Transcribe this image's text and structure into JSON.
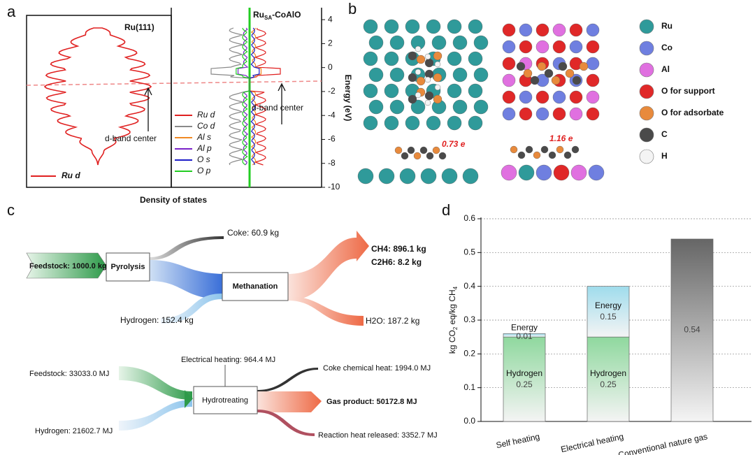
{
  "panel_labels": [
    "a",
    "b",
    "c",
    "d"
  ],
  "panel_a": {
    "left": {
      "title": "Ru(111)",
      "legend": "Ru d",
      "annotation": "d-band center"
    },
    "right": {
      "title": {
        "main": "Ru",
        "sub": "SA",
        "rest": "-CoAlO"
      },
      "annotation": "d-band center",
      "legend": [
        {
          "name": "Ru d",
          "color": "#e02020"
        },
        {
          "name": "Co d",
          "color": "#8a8a8a"
        },
        {
          "name": "Al s",
          "color": "#f08a24"
        },
        {
          "name": "Al p",
          "color": "#7a22c8"
        },
        {
          "name": "O s",
          "color": "#1c1cc8"
        },
        {
          "name": "O p",
          "color": "#22cc22"
        }
      ],
      "ylim": [
        -10,
        5
      ],
      "yticks": [
        4,
        2,
        0,
        -2,
        -4,
        -6,
        -8,
        -10
      ],
      "ylabel": "Energy (eV)"
    },
    "xlabel": "Density of states"
  },
  "panel_b": {
    "charges": [
      "0.73 e",
      "1.16 e"
    ],
    "legend": [
      {
        "name": "Ru",
        "color": "#2f9a9a"
      },
      {
        "name": "Co",
        "color": "#6f7fe0"
      },
      {
        "name": "Al",
        "color": "#e070e0"
      },
      {
        "name": "O for support",
        "color": "#e02828"
      },
      {
        "name": "O for adsorbate",
        "color": "#e88a3c"
      },
      {
        "name": "C",
        "color": "#4a4a4a"
      },
      {
        "name": "H",
        "color": "#f4f4f4"
      }
    ]
  },
  "panel_c": {
    "mass": {
      "feedstock": "Feedstock: 1000.0 kg",
      "pyrolysis": "Pyrolysis",
      "coke": "Coke: 60.9 kg",
      "hydrogen": "Hydrogen: 152.4 kg",
      "methanation": "Methanation",
      "ch4": "CH4: 896.1 kg",
      "c2h6": "C2H6: 8.2 kg",
      "h2o": "H2O: 187.2 kg"
    },
    "energy": {
      "electrical": "Electrical heating: 964.4 MJ",
      "feedstock": "Feedstock: 33033.0 MJ",
      "coke": "Coke chemical heat: 1994.0 MJ",
      "hydrotreating": "Hydrotreating",
      "gas": "Gas product: 50172.8 MJ",
      "hydrogen": "Hydrogen: 21602.7 MJ",
      "reaction": "Reaction heat released: 3352.7 MJ"
    }
  },
  "chart_data": {
    "type": "stacked_bar",
    "ylabel": {
      "a": "kg CO",
      "b": "2",
      "c": " eq/kg CH",
      "d": "4"
    },
    "categories": [
      "Self heating",
      "Electrical heating",
      "Conventional nature gas"
    ],
    "series": [
      {
        "name": "Hydrogen",
        "color": "#8fd89e",
        "values": [
          0.25,
          0.25,
          null
        ]
      },
      {
        "name": "Energy",
        "color": "#9fdcec",
        "values": [
          0.01,
          0.15,
          null
        ]
      },
      {
        "color": "#666666",
        "values": [
          null,
          null,
          0.54
        ]
      }
    ],
    "ylim": [
      0,
      0.6
    ],
    "yticks": [
      {
        "value": 0,
        "label": "0.0"
      },
      0.1,
      0.2,
      0.3,
      0.4,
      0.5,
      0.6
    ],
    "grid": true
  }
}
